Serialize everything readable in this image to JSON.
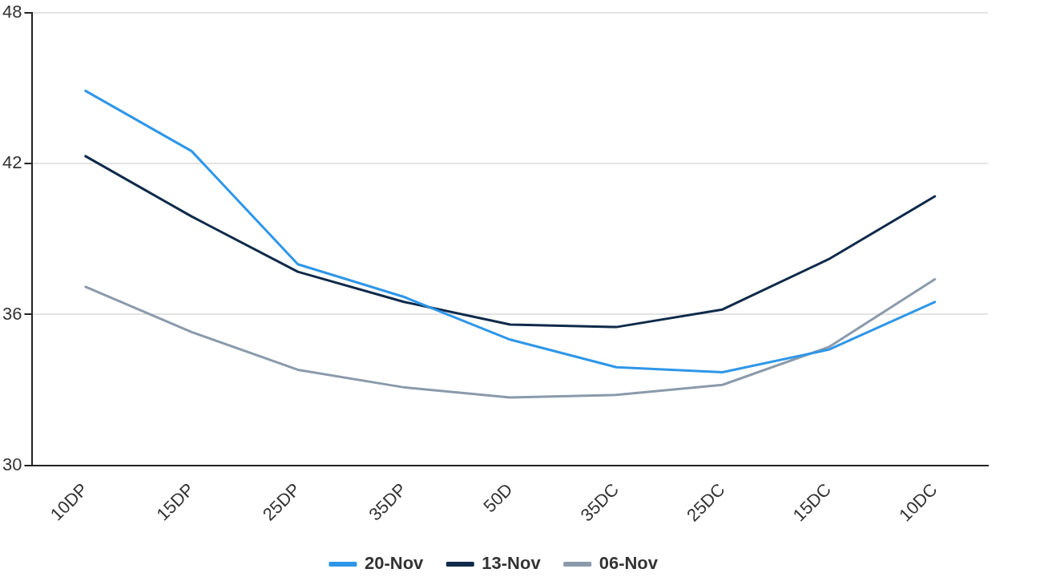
{
  "chart_data": {
    "type": "line",
    "categories": [
      "10DP",
      "15DP",
      "25DP",
      "35DP",
      "50D",
      "35DC",
      "25DC",
      "15DC",
      "10DC"
    ],
    "series": [
      {
        "name": "20-Nov",
        "color": "#2e96e8",
        "values": [
          44.9,
          42.5,
          38.0,
          36.7,
          35.0,
          33.9,
          33.7,
          34.6,
          36.5
        ]
      },
      {
        "name": "13-Nov",
        "color": "#0f2a4a",
        "values": [
          42.3,
          39.9,
          37.7,
          36.5,
          35.6,
          35.5,
          36.2,
          38.2,
          40.7
        ]
      },
      {
        "name": "06-Nov",
        "color": "#8a9aab",
        "values": [
          37.1,
          35.3,
          33.8,
          33.1,
          32.7,
          32.8,
          33.2,
          34.7,
          37.4
        ]
      }
    ],
    "ylim": [
      30,
      48
    ],
    "yticks": [
      30,
      36,
      42,
      48
    ],
    "grid": "y",
    "legend": "bottom",
    "marker": "none",
    "line_style": "solid"
  }
}
